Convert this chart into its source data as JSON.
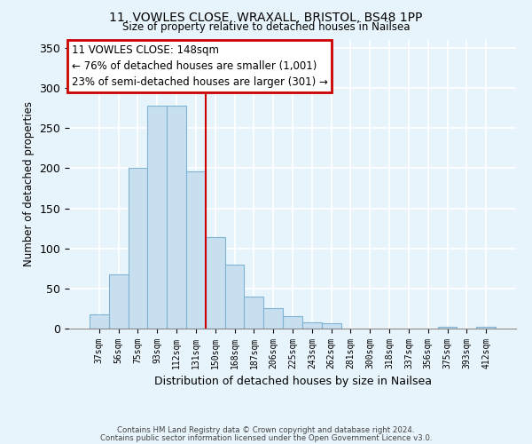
{
  "title_line1": "11, VOWLES CLOSE, WRAXALL, BRISTOL, BS48 1PP",
  "title_line2": "Size of property relative to detached houses in Nailsea",
  "xlabel": "Distribution of detached houses by size in Nailsea",
  "ylabel": "Number of detached properties",
  "bar_labels": [
    "37sqm",
    "56sqm",
    "75sqm",
    "93sqm",
    "112sqm",
    "131sqm",
    "150sqm",
    "168sqm",
    "187sqm",
    "206sqm",
    "225sqm",
    "243sqm",
    "262sqm",
    "281sqm",
    "300sqm",
    "318sqm",
    "337sqm",
    "356sqm",
    "375sqm",
    "393sqm",
    "412sqm"
  ],
  "bar_values": [
    18,
    68,
    200,
    278,
    278,
    196,
    114,
    80,
    40,
    25,
    15,
    8,
    7,
    0,
    0,
    0,
    0,
    0,
    2,
    0,
    2
  ],
  "bar_color": "#c8dff0",
  "bar_edge_color": "#7fb3d3",
  "ylim": [
    0,
    360
  ],
  "yticks": [
    0,
    50,
    100,
    150,
    200,
    250,
    300,
    350
  ],
  "annotation_title": "11 VOWLES CLOSE: 148sqm",
  "annotation_line1": "← 76% of detached houses are smaller (1,001)",
  "annotation_line2": "23% of semi-detached houses are larger (301) →",
  "vline_x_index": 6,
  "vline_color": "#cc0000",
  "annotation_box_facecolor": "#ffffff",
  "annotation_box_edgecolor": "#cc0000",
  "footer_line1": "Contains HM Land Registry data © Crown copyright and database right 2024.",
  "footer_line2": "Contains public sector information licensed under the Open Government Licence v3.0.",
  "background_color": "#e8f4fb",
  "grid_color": "#ffffff"
}
